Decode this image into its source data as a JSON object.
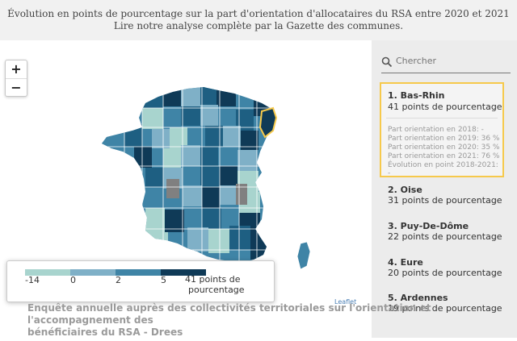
{
  "header": {
    "line1": "Évolution en points de pourcentage sur la part d'orientation d'allocataires du RSA entre 2020 et 2021",
    "line2": "Lire notre analyse complète par la Gazette des communes."
  },
  "zoom": {
    "in": "+",
    "out": "−"
  },
  "legend": {
    "ticks": [
      "-14",
      "0",
      "2",
      "5"
    ],
    "last_line1": "41 points de",
    "last_line2": "pourcentage",
    "colors": [
      "#a8d4ce",
      "#7fb0c7",
      "#3f84a6",
      "#1e5f82",
      "#0f3a57"
    ]
  },
  "attribution": "Leaflet",
  "source": {
    "line1": "Enquête annuelle auprès des collectivités territoriales sur l'orientation et l'accompagnement des",
    "line2": "bénéficiaires du RSA - Drees"
  },
  "sidebar": {
    "search_placeholder": "Chercher",
    "first": {
      "name": "1. Bas-Rhin",
      "points": "41 points de pourcentage",
      "details": [
        "Part orientation en 2018: -",
        "Part orientation en 2019: 36 %",
        "Part orientation en 2020: 35 %",
        "Part orientation en 2021: 76 %",
        "Évolution en point 2018-2021: -"
      ]
    },
    "items": [
      {
        "name": "2. Oise",
        "points": "31 points de pourcentage"
      },
      {
        "name": "3. Puy-De-Dôme",
        "points": "22 points de pourcentage"
      },
      {
        "name": "4. Eure",
        "points": "20 points de pourcentage"
      },
      {
        "name": "5. Ardennes",
        "points": "19 points de pourcentage"
      }
    ]
  }
}
